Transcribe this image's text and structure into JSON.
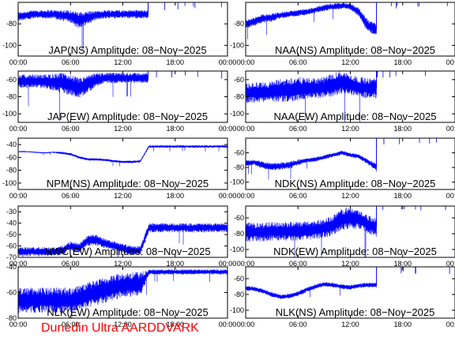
{
  "footer_text": "Dunedin Ultra AARDDVARK",
  "trace_color": "#0000ff",
  "footer_color": "#ff0000",
  "chart_data": [
    {
      "type": "line",
      "title": "JAP(NS) Amplitude: 08−Nov−2025",
      "x_ticks": [
        "00:00",
        "06:00",
        "12:00",
        "18:00",
        "00:00"
      ],
      "y_ticks": [
        "-100",
        "-80"
      ],
      "ylim": [
        -110,
        -60
      ],
      "xlim_hours": [
        0,
        24
      ],
      "series": [
        {
          "x": [
            0,
            1,
            2,
            3,
            4,
            5,
            6,
            7,
            8,
            9,
            10,
            11,
            12,
            13,
            14,
            14.9
          ],
          "y": [
            -73,
            -72,
            -71,
            -71,
            -71,
            -72,
            -73,
            -77,
            -74,
            -72,
            -71,
            -71,
            -71,
            -71,
            -71,
            -71
          ]
        }
      ],
      "band_halfwidth": [
        4,
        4,
        4,
        4,
        4,
        5,
        6,
        8,
        6,
        4,
        4,
        4,
        4,
        4,
        4,
        4
      ],
      "data_ends_hours": 14.9
    },
    {
      "type": "line",
      "title": "NAA(NS) Amplitude: 08−Nov−2025",
      "x_ticks": [
        "00:00",
        "06:00",
        "12:00",
        "18:00",
        "00:00"
      ],
      "y_ticks": [
        "-100",
        "-80"
      ],
      "ylim": [
        -110,
        -60
      ],
      "xlim_hours": [
        0,
        24
      ],
      "series": [
        {
          "x": [
            0,
            1,
            2,
            3,
            4,
            5,
            6,
            7,
            8,
            9,
            10,
            11,
            12,
            13,
            14,
            15
          ],
          "y": [
            -80,
            -78,
            -75,
            -74,
            -72,
            -71,
            -70,
            -69,
            -67,
            -65,
            -64,
            -63,
            -64,
            -69,
            -82,
            -85
          ]
        }
      ],
      "band_halfwidth": [
        4,
        4,
        4,
        4,
        3,
        3,
        3,
        3,
        3,
        3,
        3,
        3,
        3,
        4,
        6,
        6
      ],
      "data_ends_hours": 15
    },
    {
      "type": "line",
      "title": "JAP(EW) Amplitude: 08−Nov−2025",
      "x_ticks": [
        "00:00",
        "06:00",
        "12:00",
        "18:00",
        "00:00"
      ],
      "y_ticks": [
        "-100",
        "-80",
        "-60"
      ],
      "ylim": [
        -110,
        -50
      ],
      "xlim_hours": [
        0,
        24
      ],
      "series": [
        {
          "x": [
            0,
            1,
            2,
            3,
            4,
            5,
            6,
            7,
            8,
            9,
            10,
            11,
            12,
            13,
            14,
            14.9
          ],
          "y": [
            -62,
            -62,
            -62,
            -62,
            -63,
            -64,
            -66,
            -70,
            -65,
            -60,
            -58,
            -58,
            -58,
            -58,
            -58,
            -58
          ]
        }
      ],
      "band_halfwidth": [
        8,
        8,
        8,
        8,
        10,
        12,
        12,
        12,
        10,
        8,
        6,
        6,
        6,
        6,
        6,
        6
      ],
      "data_ends_hours": 14.9
    },
    {
      "type": "line",
      "title": "NAA(EW) Amplitude: 08−Nov−2025",
      "x_ticks": [
        "00:00",
        "06:00",
        "12:00",
        "18:00",
        "00:00"
      ],
      "y_ticks": [
        "-100",
        "-80",
        "-60"
      ],
      "ylim": [
        -110,
        -50
      ],
      "xlim_hours": [
        0,
        24
      ],
      "series": [
        {
          "x": [
            0,
            1,
            2,
            3,
            4,
            5,
            6,
            7,
            8,
            9,
            10,
            11,
            12,
            13,
            14,
            15
          ],
          "y": [
            -76,
            -75,
            -75,
            -74,
            -73,
            -72,
            -71,
            -70,
            -70,
            -69,
            -66,
            -63,
            -66,
            -69,
            -70,
            -70
          ]
        }
      ],
      "band_halfwidth": [
        12,
        12,
        12,
        12,
        14,
        14,
        14,
        12,
        12,
        12,
        14,
        14,
        12,
        12,
        12,
        12
      ],
      "data_ends_hours": 15
    },
    {
      "type": "line",
      "title": "NPM(NS) Amplitude: 08−Nov−2025",
      "x_ticks": [
        "00:00",
        "06:00",
        "12:00",
        "18:00",
        "00:00"
      ],
      "y_ticks": [
        "-100",
        "-80",
        "-60",
        "-40"
      ],
      "ylim": [
        -110,
        -30
      ],
      "xlim_hours": [
        0,
        24
      ],
      "series": [
        {
          "x": [
            0,
            1,
            2,
            3,
            4,
            5,
            6,
            7,
            8,
            9,
            10,
            11,
            12,
            13,
            14,
            15,
            16,
            18,
            20,
            22,
            24
          ],
          "y": [
            -51,
            -51,
            -52,
            -53,
            -52,
            -53,
            -55,
            -60,
            -63,
            -63,
            -64,
            -66,
            -67,
            -67,
            -66,
            -43,
            -43,
            -43,
            -43,
            -43,
            -43
          ]
        }
      ],
      "band_halfwidth": [
        1,
        1,
        1,
        1,
        1,
        2,
        2,
        2,
        2,
        2,
        2,
        2,
        2,
        2,
        2,
        2,
        2,
        2,
        2,
        2,
        2
      ],
      "data_ends_hours": 24
    },
    {
      "type": "line",
      "title": "NDK(NS) Amplitude: 08−Nov−2025",
      "x_ticks": [
        "00:00",
        "06:00",
        "12:00",
        "18:00",
        "00:00"
      ],
      "y_ticks": [
        "-100",
        "-80",
        "-60"
      ],
      "ylim": [
        -110,
        -40
      ],
      "xlim_hours": [
        0,
        24
      ],
      "series": [
        {
          "x": [
            0,
            1,
            2,
            3,
            4,
            5,
            6,
            7,
            8,
            9,
            10,
            11,
            12,
            13,
            14,
            15
          ],
          "y": [
            -74,
            -73,
            -77,
            -79,
            -78,
            -77,
            -73,
            -70,
            -69,
            -66,
            -63,
            -60,
            -63,
            -65,
            -72,
            -80
          ]
        }
      ],
      "band_halfwidth": [
        4,
        4,
        5,
        5,
        5,
        5,
        4,
        3,
        3,
        3,
        3,
        3,
        3,
        3,
        4,
        6
      ],
      "data_ends_hours": 15
    },
    {
      "type": "line",
      "title": "NWC(EW) Amplitude: 08−Nov−2025",
      "x_ticks": [
        "00:00",
        "06:00",
        "12:00",
        "18:00",
        "00:00"
      ],
      "y_ticks": [
        "-70",
        "-60",
        "-50",
        "-40",
        "-30"
      ],
      "ylim": [
        -70,
        -25
      ],
      "xlim_hours": [
        0,
        24
      ],
      "series": [
        {
          "x": [
            0,
            1,
            2,
            3,
            4,
            5,
            6,
            7,
            8,
            9,
            10,
            11,
            12,
            13,
            14,
            15,
            16,
            18,
            20,
            22,
            24
          ],
          "y": [
            -65,
            -65,
            -65,
            -65,
            -65,
            -64,
            -60,
            -62,
            -55,
            -55,
            -58,
            -60,
            -62,
            -64,
            -64,
            -44,
            -44,
            -44,
            -44,
            -44,
            -44
          ]
        }
      ],
      "band_halfwidth": [
        4,
        4,
        4,
        4,
        4,
        4,
        4,
        4,
        5,
        5,
        4,
        4,
        4,
        4,
        4,
        4,
        4,
        4,
        4,
        4,
        4
      ],
      "data_ends_hours": 24
    },
    {
      "type": "line",
      "title": "NDK(EW) Amplitude: 08−Nov−2025",
      "x_ticks": [
        "00:00",
        "06:00",
        "12:00",
        "18:00",
        "00:00"
      ],
      "y_ticks": [
        "-100",
        "-80",
        "-60"
      ],
      "ylim": [
        -110,
        -45
      ],
      "xlim_hours": [
        0,
        24
      ],
      "series": [
        {
          "x": [
            0,
            1,
            2,
            3,
            4,
            5,
            6,
            7,
            8,
            9,
            10,
            11,
            12,
            13,
            14,
            15
          ],
          "y": [
            -78,
            -78,
            -78,
            -77,
            -77,
            -77,
            -77,
            -76,
            -75,
            -73,
            -70,
            -62,
            -60,
            -62,
            -68,
            -72
          ]
        }
      ],
      "band_halfwidth": [
        12,
        12,
        12,
        12,
        12,
        12,
        12,
        12,
        12,
        12,
        13,
        14,
        14,
        12,
        12,
        12
      ],
      "data_ends_hours": 15
    },
    {
      "type": "line",
      "title": "NLK(EW) Amplitude: 08−Nov−2025",
      "x_ticks": [
        "00:00",
        "06:00",
        "12:00",
        "18:00",
        "00:00"
      ],
      "y_ticks": [
        "-80",
        "-60",
        "-40"
      ],
      "ylim": [
        -80,
        -40
      ],
      "xlim_hours": [
        0,
        24
      ],
      "series": [
        {
          "x": [
            0,
            1,
            2,
            3,
            4,
            5,
            6,
            7,
            8,
            9,
            10,
            11,
            12,
            13,
            14,
            15,
            16,
            18,
            20,
            22,
            24
          ],
          "y": [
            -66,
            -66,
            -66,
            -66,
            -66,
            -66,
            -66,
            -64,
            -62,
            -60,
            -58,
            -56,
            -54,
            -54,
            -54,
            -44,
            -44,
            -44,
            -44,
            -44,
            -44
          ]
        }
      ],
      "band_halfwidth": [
        10,
        10,
        10,
        10,
        10,
        10,
        10,
        10,
        10,
        10,
        10,
        10,
        10,
        10,
        10,
        2,
        2,
        2,
        2,
        2,
        2
      ],
      "data_ends_hours": 24
    },
    {
      "type": "line",
      "title": "NLK(NS) Amplitude: 08−Nov−2025",
      "x_ticks": [
        "00:00",
        "06:00",
        "12:00",
        "18:00",
        "00:00"
      ],
      "y_ticks": [
        "-100",
        "-80",
        "-60"
      ],
      "ylim": [
        -110,
        -45
      ],
      "xlim_hours": [
        0,
        24
      ],
      "series": [
        {
          "x": [
            0,
            1,
            2,
            3,
            4,
            5,
            6,
            7,
            8,
            9,
            10,
            11,
            12,
            13,
            14,
            15
          ],
          "y": [
            -72,
            -73,
            -76,
            -80,
            -83,
            -82,
            -79,
            -74,
            -70,
            -67,
            -68,
            -70,
            -71,
            -69,
            -68,
            -68
          ]
        }
      ],
      "band_halfwidth": [
        3,
        3,
        3,
        3,
        3,
        3,
        3,
        3,
        3,
        3,
        3,
        3,
        3,
        3,
        3,
        3
      ],
      "data_ends_hours": 15
    }
  ]
}
